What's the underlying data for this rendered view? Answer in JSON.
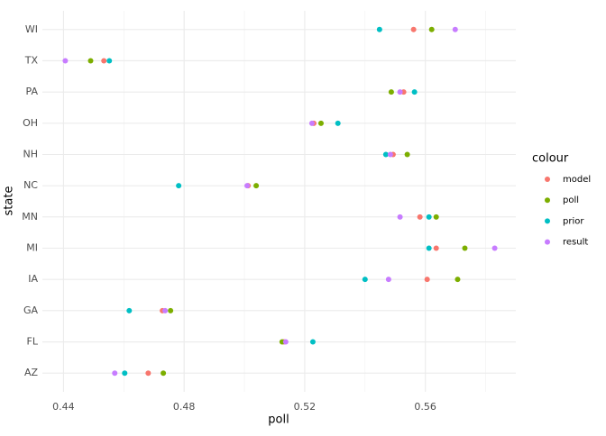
{
  "chart_data": {
    "type": "dot",
    "x_label": "poll",
    "y_label": "state",
    "legend_title": "colour",
    "categories": [
      "AZ",
      "FL",
      "GA",
      "IA",
      "MI",
      "MN",
      "NC",
      "NH",
      "OH",
      "PA",
      "TX",
      "WI"
    ],
    "series": [
      {
        "name": "model",
        "color": "#F8766D",
        "values": [
          0.4681,
          0.5131,
          0.4728,
          0.5606,
          0.5636,
          0.5582,
          0.5012,
          0.5493,
          0.523,
          0.5528,
          0.4534,
          0.5561
        ]
      },
      {
        "name": "poll",
        "color": "#7CAE00",
        "values": [
          0.4731,
          0.5125,
          0.4755,
          0.5707,
          0.5731,
          0.5636,
          0.5039,
          0.554,
          0.5254,
          0.5487,
          0.449,
          0.5621
        ]
      },
      {
        "name": "prior",
        "color": "#00BFC4",
        "values": [
          0.4603,
          0.5227,
          0.4618,
          0.54,
          0.5612,
          0.5612,
          0.4782,
          0.5469,
          0.531,
          0.5564,
          0.4552,
          0.5448
        ]
      },
      {
        "name": "result",
        "color": "#C77CFF",
        "values": [
          0.457,
          0.5137,
          0.4737,
          0.5478,
          0.583,
          0.5516,
          0.5009,
          0.5484,
          0.5224,
          0.5516,
          0.4406,
          0.5699
        ]
      }
    ],
    "xlim": [
      0.433,
      0.59
    ],
    "xticks": [
      0.44,
      0.48,
      0.52,
      0.56
    ],
    "grid": true
  }
}
